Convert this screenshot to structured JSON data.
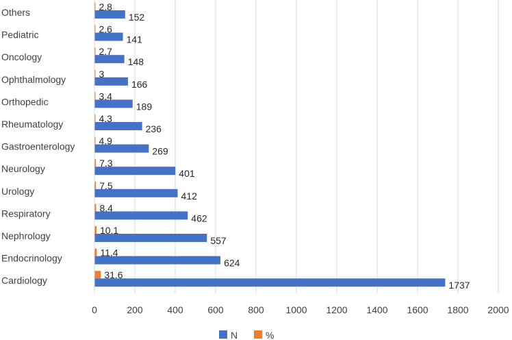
{
  "chart_data": {
    "type": "bar",
    "orientation": "horizontal",
    "categories": [
      "Others",
      "Pediatric",
      "Oncology",
      "Ophthalmology",
      "Orthopedic",
      "Rheumatology",
      "Gastroenterology",
      "Neurology",
      "Urology",
      "Respiratory",
      "Nephrology",
      "Endocrinology",
      "Cardiology"
    ],
    "series": [
      {
        "name": "N",
        "color": "#4472C4",
        "values": [
          152,
          141,
          148,
          166,
          189,
          236,
          269,
          401,
          412,
          462,
          557,
          624,
          1737
        ],
        "labels": [
          "152",
          "141",
          "148",
          "166",
          "189",
          "236",
          "269",
          "401",
          "412",
          "462",
          "557",
          "624",
          "1737"
        ]
      },
      {
        "name": "%",
        "color": "#ED7D31",
        "values": [
          2.8,
          2.6,
          2.7,
          3,
          3.4,
          4.3,
          4.9,
          7.3,
          7.5,
          8.4,
          10.1,
          11.4,
          31.6
        ],
        "labels": [
          "2.8",
          "2.6",
          "2.7",
          "3",
          "3.4",
          "4.3",
          "4.9",
          "7.3",
          "7.5",
          "8.4",
          "10.1",
          "11.4",
          "31.6"
        ]
      }
    ],
    "xlim": [
      0,
      2000
    ],
    "xticks": [
      "0",
      "200",
      "400",
      "600",
      "800",
      "1000",
      "1200",
      "1400",
      "1600",
      "1800",
      "2000"
    ],
    "grid": true,
    "legend_position": "bottom"
  }
}
